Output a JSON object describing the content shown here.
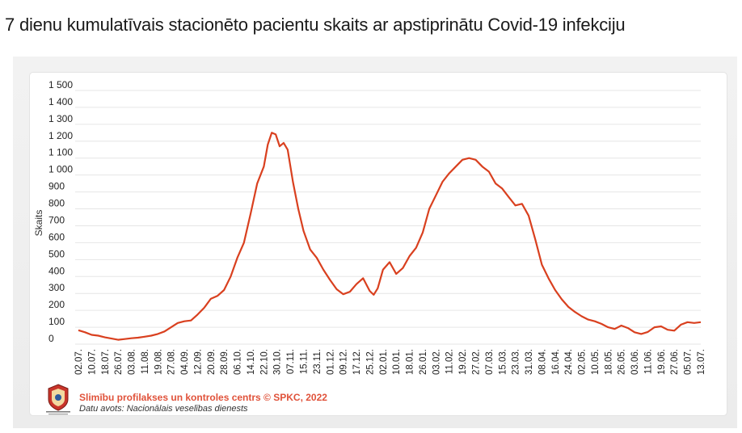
{
  "page": {
    "title": "7 dienu kumulatīvais stacionēto pacientu skaits ar apstiprinātu Covid-19 infekciju"
  },
  "footer": {
    "credit": "Slimību profilakses un kontroles centrs © SPKC, 2022",
    "source": "Datu avots: Nacionālais veselības dienests",
    "logo_caption": "Slimību profilakses un kontroles centrs"
  },
  "colors": {
    "line": "#d9401f",
    "credit": "#e0523a",
    "grid": "#e6e6e6"
  },
  "chart_data": {
    "type": "line",
    "title": "7 dienu kumulatīvais stacionēto pacientu skaits ar apstiprinātu Covid-19 infekciju",
    "ylabel": "Skaits",
    "xlabel": "",
    "ylim": [
      0,
      1500
    ],
    "yticks": [
      0,
      100,
      200,
      300,
      400,
      500,
      600,
      700,
      800,
      900,
      1000,
      1100,
      1200,
      1300,
      1400,
      1500
    ],
    "ytick_labels": [
      "0",
      "100",
      "200",
      "300",
      "400",
      "500",
      "600",
      "700",
      "800",
      "900",
      "1 000",
      "1 100",
      "1 200",
      "1 300",
      "1 400",
      "1 500"
    ],
    "grid": true,
    "categories": [
      "02.07.",
      "10.07.",
      "18.07.",
      "26.07.",
      "03.08.",
      "11.08.",
      "19.08.",
      "27.08.",
      "04.09.",
      "12.09.",
      "20.09.",
      "28.09.",
      "06.10.",
      "14.10.",
      "22.10.",
      "30.10.",
      "07.11.",
      "15.11.",
      "23.11.",
      "01.12.",
      "09.12.",
      "17.12.",
      "25.12.",
      "02.01.",
      "10.01.",
      "18.01.",
      "26.01.",
      "03.02.",
      "11.02.",
      "19.02.",
      "27.02.",
      "07.03.",
      "15.03.",
      "23.03.",
      "31.03.",
      "08.04.",
      "16.04.",
      "24.04.",
      "02.05.",
      "10.05.",
      "18.05.",
      "26.05.",
      "03.06.",
      "11.06.",
      "19.06.",
      "27.06.",
      "05.07.",
      "13.07."
    ],
    "series": [
      {
        "values": [
          [
            0,
            82
          ],
          [
            0.5,
            70
          ],
          [
            1,
            55
          ],
          [
            1.5,
            50
          ],
          [
            2,
            40
          ],
          [
            2.5,
            33
          ],
          [
            3,
            26
          ],
          [
            3.5,
            30
          ],
          [
            4,
            35
          ],
          [
            4.5,
            38
          ],
          [
            5,
            44
          ],
          [
            5.5,
            50
          ],
          [
            6,
            60
          ],
          [
            6.5,
            75
          ],
          [
            7,
            100
          ],
          [
            7.5,
            125
          ],
          [
            8,
            135
          ],
          [
            8.5,
            140
          ],
          [
            9,
            175
          ],
          [
            9.5,
            215
          ],
          [
            10,
            268
          ],
          [
            10.5,
            285
          ],
          [
            11,
            320
          ],
          [
            11.5,
            400
          ],
          [
            12,
            510
          ],
          [
            12.5,
            600
          ],
          [
            13,
            770
          ],
          [
            13.5,
            950
          ],
          [
            14,
            1050
          ],
          [
            14.3,
            1180
          ],
          [
            14.6,
            1250
          ],
          [
            14.9,
            1240
          ],
          [
            15.2,
            1170
          ],
          [
            15.5,
            1190
          ],
          [
            15.8,
            1150
          ],
          [
            16.2,
            960
          ],
          [
            16.6,
            800
          ],
          [
            17,
            670
          ],
          [
            17.5,
            560
          ],
          [
            18,
            510
          ],
          [
            18.5,
            440
          ],
          [
            19,
            380
          ],
          [
            19.5,
            325
          ],
          [
            20,
            295
          ],
          [
            20.5,
            310
          ],
          [
            21,
            355
          ],
          [
            21.5,
            390
          ],
          [
            22,
            315
          ],
          [
            22.3,
            292
          ],
          [
            22.6,
            330
          ],
          [
            23,
            440
          ],
          [
            23.5,
            485
          ],
          [
            24,
            415
          ],
          [
            24.5,
            450
          ],
          [
            25,
            520
          ],
          [
            25.5,
            570
          ],
          [
            26,
            660
          ],
          [
            26.5,
            800
          ],
          [
            27,
            880
          ],
          [
            27.5,
            960
          ],
          [
            28,
            1010
          ],
          [
            28.5,
            1050
          ],
          [
            29,
            1090
          ],
          [
            29.5,
            1100
          ],
          [
            30,
            1090
          ],
          [
            30.5,
            1050
          ],
          [
            31,
            1020
          ],
          [
            31.5,
            950
          ],
          [
            32,
            920
          ],
          [
            32.5,
            870
          ],
          [
            33,
            820
          ],
          [
            33.5,
            830
          ],
          [
            34,
            760
          ],
          [
            34.5,
            620
          ],
          [
            35,
            470
          ],
          [
            35.5,
            390
          ],
          [
            36,
            320
          ],
          [
            36.5,
            265
          ],
          [
            37,
            220
          ],
          [
            37.5,
            190
          ],
          [
            38,
            165
          ],
          [
            38.5,
            145
          ],
          [
            39,
            135
          ],
          [
            39.5,
            120
          ],
          [
            40,
            100
          ],
          [
            40.5,
            90
          ],
          [
            41,
            110
          ],
          [
            41.5,
            95
          ],
          [
            42,
            70
          ],
          [
            42.5,
            60
          ],
          [
            43,
            72
          ],
          [
            43.5,
            100
          ],
          [
            44,
            105
          ],
          [
            44.5,
            85
          ],
          [
            45,
            80
          ],
          [
            45.5,
            115
          ],
          [
            46,
            130
          ],
          [
            46.5,
            125
          ],
          [
            47,
            130
          ]
        ]
      }
    ]
  }
}
